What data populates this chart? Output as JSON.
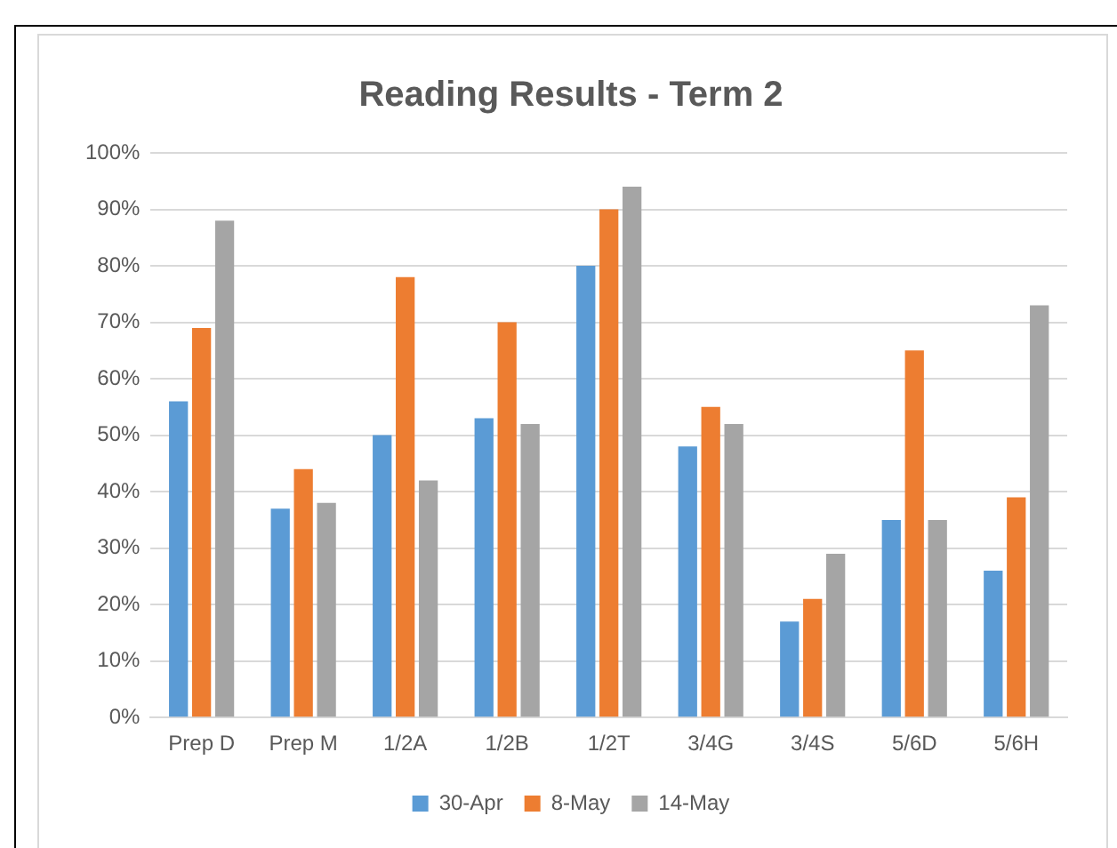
{
  "chart_data": {
    "type": "bar",
    "title": "Reading Results - Term 2",
    "categories": [
      "Prep D",
      "Prep M",
      "1/2A",
      "1/2B",
      "1/2T",
      "3/4G",
      "3/4S",
      "5/6D",
      "5/6H"
    ],
    "series": [
      {
        "name": "30-Apr",
        "color": "#5b9bd5",
        "values": [
          56,
          37,
          50,
          53,
          80,
          48,
          17,
          35,
          26
        ]
      },
      {
        "name": "8-May",
        "color": "#ed7d31",
        "values": [
          69,
          44,
          78,
          70,
          90,
          55,
          21,
          65,
          39
        ]
      },
      {
        "name": "14-May",
        "color": "#a5a5a5",
        "values": [
          88,
          38,
          42,
          52,
          94,
          52,
          29,
          35,
          73
        ]
      }
    ],
    "ylim": [
      0,
      100
    ],
    "yticks": [
      {
        "value": 0,
        "label": "0%"
      },
      {
        "value": 10,
        "label": "10%"
      },
      {
        "value": 20,
        "label": "20%"
      },
      {
        "value": 30,
        "label": "30%"
      },
      {
        "value": 40,
        "label": "40%"
      },
      {
        "value": 50,
        "label": "50%"
      },
      {
        "value": 60,
        "label": "60%"
      },
      {
        "value": 70,
        "label": "70%"
      },
      {
        "value": 80,
        "label": "80%"
      },
      {
        "value": 90,
        "label": "90%"
      },
      {
        "value": 100,
        "label": "100%"
      }
    ],
    "grid": "y",
    "legend": "bottom"
  }
}
